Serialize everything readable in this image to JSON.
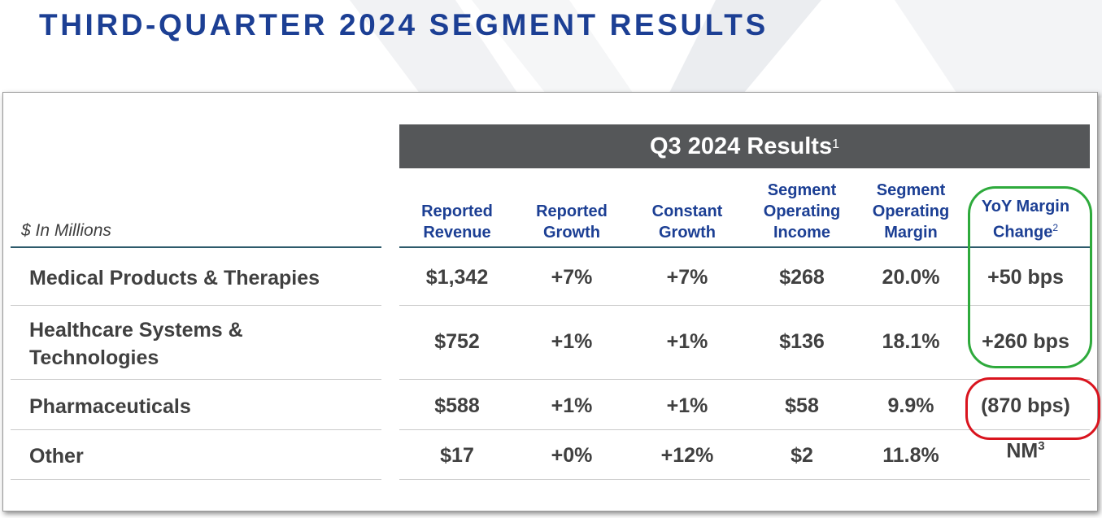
{
  "page_title": "THIRD-QUARTER 2024 SEGMENT RESULTS",
  "table": {
    "group_header": "Q3 2024 Results",
    "group_header_footnote": "1",
    "units_label": "$ In Millions",
    "columns": [
      {
        "lines": [
          "Reported",
          "Revenue"
        ],
        "footnote": ""
      },
      {
        "lines": [
          "Reported",
          "Growth"
        ],
        "footnote": ""
      },
      {
        "lines": [
          "Constant",
          "Growth"
        ],
        "footnote": ""
      },
      {
        "lines": [
          "Segment",
          "Operating",
          "Income"
        ],
        "footnote": ""
      },
      {
        "lines": [
          "Segment",
          "Operating",
          "Margin"
        ],
        "footnote": ""
      },
      {
        "lines": [
          "YoY Margin",
          "Change"
        ],
        "footnote": "2"
      }
    ],
    "rows": [
      {
        "label": "Medical Products & Therapies",
        "values": [
          "$1,342",
          "+7%",
          "+7%",
          "$268",
          "20.0%",
          "+50 bps"
        ],
        "footnote": ""
      },
      {
        "label": "Healthcare Systems & Technologies",
        "values": [
          "$752",
          "+1%",
          "+1%",
          "$136",
          "18.1%",
          "+260 bps"
        ],
        "footnote": ""
      },
      {
        "label": "Pharmaceuticals",
        "values": [
          "$588",
          "+1%",
          "+1%",
          "$58",
          "9.9%",
          "(870 bps)"
        ],
        "footnote": ""
      },
      {
        "label": "Other",
        "values": [
          "$17",
          "+0%",
          "+12%",
          "$2",
          "11.8%",
          "NM"
        ],
        "footnote": "3"
      }
    ]
  },
  "colors": {
    "title": "#1c3f94",
    "header_bar": "#555759",
    "column_header_text": "#1c3f94",
    "body_text": "#404040",
    "highlight_positive": "#2eaa3c",
    "highlight_negative": "#d9141e"
  }
}
